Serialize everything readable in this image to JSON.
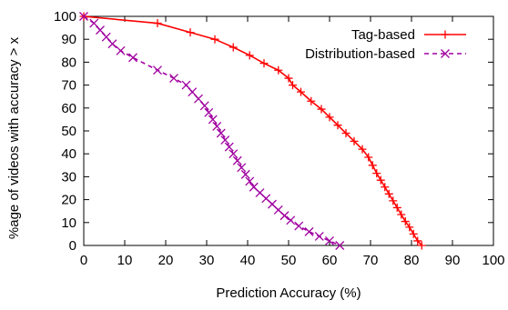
{
  "chart_data": {
    "type": "line",
    "title": "",
    "xlabel": "Prediction Accuracy (%)",
    "ylabel": "%age of videos with accuracy > x",
    "xlim": [
      0,
      100
    ],
    "ylim": [
      0,
      100
    ],
    "xticks": [
      0,
      10,
      20,
      30,
      40,
      50,
      60,
      70,
      80,
      90,
      100
    ],
    "yticks": [
      0,
      10,
      20,
      30,
      40,
      50,
      60,
      70,
      80,
      90,
      100
    ],
    "grid": false,
    "legend_position": "top-right",
    "series": [
      {
        "name": "Tag-based",
        "color": "#ff0000",
        "line_style": "solid",
        "marker": "plus",
        "x": [
          0,
          18,
          26,
          32,
          36.5,
          40.5,
          44,
          47.5,
          50,
          51,
          53,
          55.5,
          58,
          60,
          62,
          64,
          66,
          68,
          69.5,
          70.5,
          71.5,
          72.5,
          73.5,
          74.5,
          75.5,
          76.5,
          77.5,
          78.5,
          79.5,
          80.5,
          81.5,
          82.5,
          83.5,
          84.5,
          85.5,
          87.5,
          91
        ],
        "y": [
          100,
          97,
          93,
          90,
          86.5,
          83,
          79.5,
          76.5,
          73,
          70,
          67,
          63,
          59.5,
          56,
          52.5,
          49,
          45.5,
          42,
          38.5,
          35,
          31.5,
          28.5,
          25.5,
          22.5,
          19.5,
          16.5,
          13.5,
          10.5,
          8,
          5,
          2,
          0,
          0,
          0,
          0,
          0,
          0
        ]
      },
      {
        "name": "Distribution-based",
        "color": "#a000a0",
        "line_style": "dashed",
        "marker": "x",
        "x": [
          0,
          2.5,
          4,
          5.5,
          7,
          9,
          12,
          18,
          22,
          25,
          26.5,
          28,
          29.5,
          30.5,
          31.5,
          32.5,
          33.5,
          34.5,
          35.5,
          36.5,
          37.5,
          38.5,
          39.5,
          40.5,
          41.5,
          43,
          44.5,
          46,
          47.5,
          49,
          50.5,
          52.5,
          55,
          57.5,
          60,
          62.5,
          65,
          67.5
        ],
        "y": [
          100,
          97,
          94,
          91,
          88,
          85,
          82,
          76.5,
          73,
          70,
          67,
          64,
          61,
          58,
          55,
          52,
          49,
          46,
          43,
          40,
          37,
          34,
          31,
          28,
          25.5,
          23,
          20.5,
          18,
          15.5,
          13,
          11,
          8.5,
          6,
          4,
          2,
          0,
          0,
          0
        ]
      }
    ]
  }
}
